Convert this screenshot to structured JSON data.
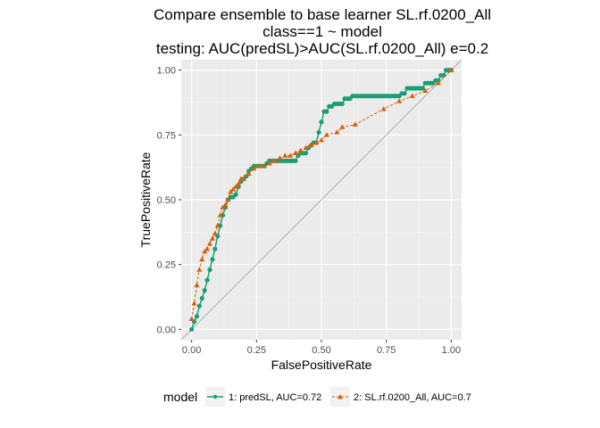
{
  "chart_data": {
    "type": "line",
    "title": [
      "Compare ensemble to base learner SL.rf.0200_All",
      "class==1 ~ model",
      "testing: AUC(predSL)>AUC(SL.rf.0200_All) e=0.2"
    ],
    "xlabel": "FalsePositiveRate",
    "ylabel": "TruePositiveRate",
    "xlim": [
      -0.04,
      1.04
    ],
    "ylim": [
      -0.04,
      1.04
    ],
    "x_ticks": [
      0,
      0.25,
      0.5,
      0.75,
      1
    ],
    "x_tick_labels": [
      "0.00",
      "0.25",
      "0.50",
      "0.75",
      "1.00"
    ],
    "y_ticks": [
      0,
      0.25,
      0.5,
      0.75,
      1
    ],
    "y_tick_labels": [
      "0.00",
      "0.25",
      "0.50",
      "0.75",
      "1.00"
    ],
    "grid": true,
    "reference_line": {
      "x": [
        -0.04,
        1.04
      ],
      "y": [
        -0.04,
        1.04
      ],
      "color": "#b3b3b3"
    },
    "legend": {
      "title": "model",
      "position": "bottom",
      "entries": [
        "1: predSL, AUC=0.72",
        "2: SL.rf.0200_All, AUC=0.7"
      ]
    },
    "series": [
      {
        "name": "1: predSL, AUC=0.72",
        "color": "#1b9e77",
        "marker": "circle",
        "line": "solid",
        "x": [
          0.0,
          0.01,
          0.02,
          0.03,
          0.04,
          0.05,
          0.06,
          0.07,
          0.08,
          0.09,
          0.1,
          0.11,
          0.12,
          0.13,
          0.14,
          0.15,
          0.16,
          0.17,
          0.18,
          0.19,
          0.2,
          0.21,
          0.22,
          0.23,
          0.24,
          0.25,
          0.26,
          0.27,
          0.28,
          0.29,
          0.3,
          0.31,
          0.32,
          0.33,
          0.34,
          0.35,
          0.36,
          0.37,
          0.38,
          0.39,
          0.4,
          0.41,
          0.42,
          0.43,
          0.44,
          0.45,
          0.46,
          0.47,
          0.48,
          0.49,
          0.5,
          0.51,
          0.52,
          0.53,
          0.54,
          0.55,
          0.56,
          0.57,
          0.58,
          0.59,
          0.6,
          0.61,
          0.62,
          0.63,
          0.64,
          0.65,
          0.66,
          0.67,
          0.68,
          0.69,
          0.7,
          0.71,
          0.72,
          0.73,
          0.74,
          0.75,
          0.76,
          0.77,
          0.78,
          0.79,
          0.8,
          0.81,
          0.82,
          0.83,
          0.84,
          0.85,
          0.86,
          0.87,
          0.88,
          0.89,
          0.9,
          0.91,
          0.92,
          0.93,
          0.94,
          0.95,
          0.96,
          0.97,
          0.98,
          0.99,
          1.0
        ],
        "y": [
          0.0,
          0.03,
          0.05,
          0.09,
          0.12,
          0.15,
          0.19,
          0.23,
          0.27,
          0.31,
          0.36,
          0.4,
          0.44,
          0.47,
          0.5,
          0.51,
          0.51,
          0.52,
          0.55,
          0.57,
          0.58,
          0.59,
          0.61,
          0.62,
          0.63,
          0.63,
          0.63,
          0.63,
          0.63,
          0.64,
          0.65,
          0.65,
          0.65,
          0.65,
          0.65,
          0.65,
          0.65,
          0.65,
          0.65,
          0.65,
          0.65,
          0.67,
          0.68,
          0.68,
          0.68,
          0.7,
          0.71,
          0.72,
          0.72,
          0.76,
          0.8,
          0.84,
          0.84,
          0.86,
          0.86,
          0.87,
          0.87,
          0.87,
          0.87,
          0.89,
          0.89,
          0.89,
          0.9,
          0.9,
          0.9,
          0.9,
          0.9,
          0.9,
          0.9,
          0.9,
          0.9,
          0.9,
          0.9,
          0.9,
          0.9,
          0.9,
          0.9,
          0.9,
          0.9,
          0.9,
          0.9,
          0.91,
          0.91,
          0.93,
          0.93,
          0.93,
          0.93,
          0.93,
          0.93,
          0.93,
          0.95,
          0.95,
          0.95,
          0.95,
          0.96,
          0.96,
          0.98,
          0.98,
          1.0,
          1.0,
          1.0
        ]
      },
      {
        "name": "2: SL.rf.0200_All, AUC=0.7",
        "color": "#d95f02",
        "marker": "triangle",
        "line": "dashed",
        "x": [
          0.0,
          0.01,
          0.02,
          0.03,
          0.04,
          0.05,
          0.06,
          0.07,
          0.08,
          0.09,
          0.1,
          0.11,
          0.12,
          0.13,
          0.14,
          0.15,
          0.16,
          0.17,
          0.18,
          0.19,
          0.2,
          0.22,
          0.24,
          0.26,
          0.28,
          0.3,
          0.32,
          0.34,
          0.36,
          0.38,
          0.4,
          0.42,
          0.44,
          0.46,
          0.48,
          0.5,
          0.52,
          0.56,
          0.58,
          0.63,
          0.74,
          0.8,
          0.85,
          0.9,
          0.95,
          1.0
        ],
        "y": [
          0.04,
          0.1,
          0.17,
          0.23,
          0.27,
          0.3,
          0.31,
          0.33,
          0.35,
          0.37,
          0.4,
          0.44,
          0.47,
          0.48,
          0.5,
          0.53,
          0.54,
          0.55,
          0.56,
          0.58,
          0.58,
          0.6,
          0.62,
          0.63,
          0.63,
          0.64,
          0.65,
          0.66,
          0.67,
          0.67,
          0.68,
          0.69,
          0.7,
          0.71,
          0.72,
          0.73,
          0.75,
          0.76,
          0.78,
          0.79,
          0.85,
          0.88,
          0.9,
          0.92,
          0.95,
          1.0
        ]
      }
    ]
  }
}
